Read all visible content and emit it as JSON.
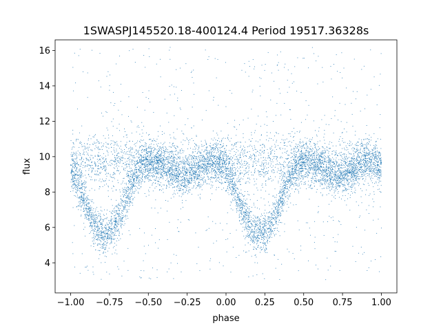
{
  "chart_data": {
    "type": "scatter",
    "title": "1SWASPJ145520.18-400124.4 Period 19517.36328s",
    "xlabel": "phase",
    "ylabel": "flux",
    "xlim": [
      -1.1,
      1.1
    ],
    "ylim": [
      2.3,
      16.6
    ],
    "xticks": [
      -1.0,
      -0.75,
      -0.5,
      -0.25,
      0.0,
      0.25,
      0.5,
      0.75,
      1.0
    ],
    "xtick_labels": [
      "−1.00",
      "−0.75",
      "−0.50",
      "−0.25",
      "0.00",
      "0.25",
      "0.50",
      "0.75",
      "1.00"
    ],
    "yticks": [
      4,
      6,
      8,
      10,
      12,
      14,
      16
    ],
    "ytick_labels": [
      "4",
      "6",
      "8",
      "10",
      "12",
      "14",
      "16"
    ],
    "grid": false,
    "legend": "none",
    "point_color": "#1f77b4",
    "series": [
      {
        "phase_range": [
          -1.0,
          1.0
        ],
        "baseline_flux": 9.7,
        "primary_minima": [
          {
            "phase": -0.78,
            "flux": 5.6
          },
          {
            "phase": 0.22,
            "flux": 5.6
          }
        ],
        "secondary_minima": [
          {
            "phase": -0.28,
            "flux": 8.9
          },
          {
            "phase": 0.72,
            "flux": 8.9
          }
        ],
        "flux_spread": [
          3.0,
          16.2
        ]
      }
    ]
  }
}
